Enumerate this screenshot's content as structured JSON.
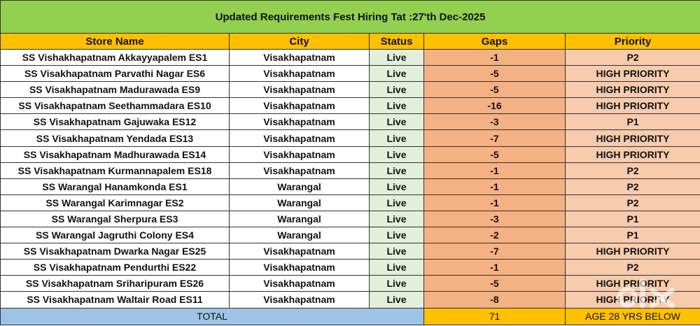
{
  "title": "Updated Requirements Fest Hiring Tat :27'th Dec-2025",
  "headers": [
    "Store Name",
    "City",
    "Status",
    "Gaps",
    "Priority"
  ],
  "rows": [
    [
      "SS Vishakhapatnam Akkayyapalem ES1",
      "Visakhapatnam",
      "Live",
      "-1",
      "P2"
    ],
    [
      "SS Visakhapatnam Parvathi Nagar ES6",
      "Visakhapatnam",
      "Live",
      "-5",
      "HIGH PRIORITY"
    ],
    [
      "SS Visakhapatnam Madurawada ES9",
      "Visakhapatnam",
      "Live",
      "-5",
      "HIGH PRIORITY"
    ],
    [
      "SS Visakhapatnam Seethammadara ES10",
      "Visakhapatnam",
      "Live",
      "-16",
      "HIGH PRIORITY"
    ],
    [
      "SS Visakhapatnam Gajuwaka ES12",
      "Visakhapatnam",
      "Live",
      "-3",
      "P1"
    ],
    [
      "SS Visakhapatnam Yendada ES13",
      "Visakhapatnam",
      "Live",
      "-7",
      "HIGH PRIORITY"
    ],
    [
      "SS Visakhapatnam Madhurawada ES14",
      "Visakhapatnam",
      "Live",
      "-5",
      "HIGH PRIORITY"
    ],
    [
      "SS Visakhapatnam Kurmannapalem ES18",
      "Visakhapatnam",
      "Live",
      "-1",
      "P2"
    ],
    [
      "SS Warangal Hanamkonda ES1",
      "Warangal",
      "Live",
      "-1",
      "P2"
    ],
    [
      "SS Warangal Karimnagar ES2",
      "Warangal",
      "Live",
      "-1",
      "P2"
    ],
    [
      "SS Warangal Sherpura ES3",
      "Warangal",
      "Live",
      "-3",
      "P1"
    ],
    [
      "SS Warangal Jagruthi Colony ES4",
      "Warangal",
      "Live",
      "-2",
      "P1"
    ],
    [
      "SS Visakhapatnam Dwarka Nagar ES25",
      "Visakhapatnam",
      "Live",
      "-7",
      "HIGH PRIORITY"
    ],
    [
      "SS Visakhapatnam Pendurthi ES22",
      "Visakhapatnam",
      "Live",
      "-1",
      "P2"
    ],
    [
      "SS Visakhapatnam Sriharipuram ES26",
      "Visakhapatnam",
      "Live",
      "-5",
      "HIGH PRIORITY"
    ],
    [
      "SS Visakhapatnam Waltair Road ES11",
      "Visakhapatnam",
      "Live",
      "-8",
      "HIGH PRIORITY"
    ]
  ],
  "total": {
    "label": "TOTAL",
    "gaps": "71",
    "note": "AGE 28 YRS BELOW"
  },
  "watermark": "olx"
}
